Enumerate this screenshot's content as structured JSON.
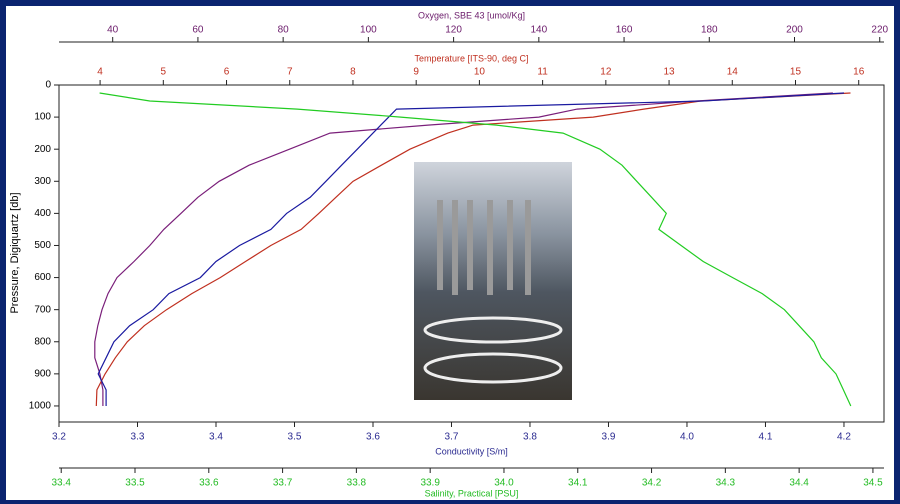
{
  "chart_data": {
    "type": "line",
    "y_label": "Pressure, Digiquartz [db]",
    "y": [
      25,
      50,
      75,
      100,
      125,
      150,
      200,
      250,
      300,
      350,
      400,
      450,
      500,
      550,
      600,
      650,
      700,
      750,
      800,
      850,
      900,
      950,
      1000
    ],
    "ylim": [
      0,
      1050
    ],
    "yticks": [
      0,
      100,
      200,
      300,
      400,
      500,
      600,
      700,
      800,
      900,
      1000
    ],
    "y_inverted": true,
    "series": [
      {
        "name": "Oxygen, SBE 43 [umol/Kg]",
        "color": "#7a1f7a",
        "values": [
          209,
          177,
          149,
          140,
          114,
          91,
          81.5,
          72,
          65,
          60,
          56,
          52,
          48.7,
          45,
          41,
          38.9,
          37.5,
          36.5,
          35.8,
          35.8,
          37,
          37.7,
          37.7
        ],
        "xlim": [
          27.4,
          221
        ],
        "xticks": [
          40,
          60,
          80,
          100,
          120,
          140,
          160,
          180,
          200,
          220
        ]
      },
      {
        "name": "Temperature [ITS-90, deg C]",
        "color": "#c03020",
        "values": [
          15.87,
          13.5,
          12.6,
          11.8,
          9.9,
          9.5,
          8.9,
          8.45,
          8.0,
          7.73,
          7.46,
          7.18,
          6.7,
          6.3,
          5.9,
          5.45,
          5.05,
          4.7,
          4.43,
          4.24,
          4.08,
          3.95,
          3.94
        ],
        "xlim": [
          3.35,
          16.4
        ],
        "xticks": [
          4,
          5,
          6,
          7,
          8,
          9,
          10,
          11,
          12,
          13,
          14,
          15,
          16
        ]
      },
      {
        "name": "Conductivity [S/m]",
        "color": "#1a1aa0",
        "values": [
          4.2,
          4.02,
          3.63,
          3.62,
          3.61,
          3.6,
          3.58,
          3.56,
          3.54,
          3.52,
          3.49,
          3.47,
          3.43,
          3.4,
          3.38,
          3.34,
          3.32,
          3.29,
          3.27,
          3.26,
          3.25,
          3.26,
          3.26
        ],
        "xlim": [
          3.2,
          4.251
        ],
        "xticks": [
          3.2,
          3.3,
          3.4,
          3.5,
          3.6,
          3.7,
          3.8,
          3.9,
          {
            "value": 4.0,
            "label": "4.0"
          },
          4.1,
          4.2
        ]
      },
      {
        "name": "Salinity, Practical [PSU]",
        "color": "#22cc22",
        "values": [
          33.452,
          33.52,
          33.72,
          33.86,
          33.99,
          34.08,
          34.13,
          34.16,
          34.18,
          34.2,
          34.22,
          34.21,
          34.24,
          34.27,
          34.31,
          34.35,
          34.38,
          34.4,
          34.42,
          34.43,
          34.45,
          34.46,
          34.47
        ],
        "xlim": [
          33.397,
          34.515
        ],
        "xticks": [
          33.4,
          33.5,
          33.6,
          33.7,
          33.8,
          33.9,
          {
            "value": 34.0,
            "label": "34.0"
          },
          34.1,
          34.2,
          34.3,
          34.4,
          34.5
        ]
      }
    ]
  }
}
